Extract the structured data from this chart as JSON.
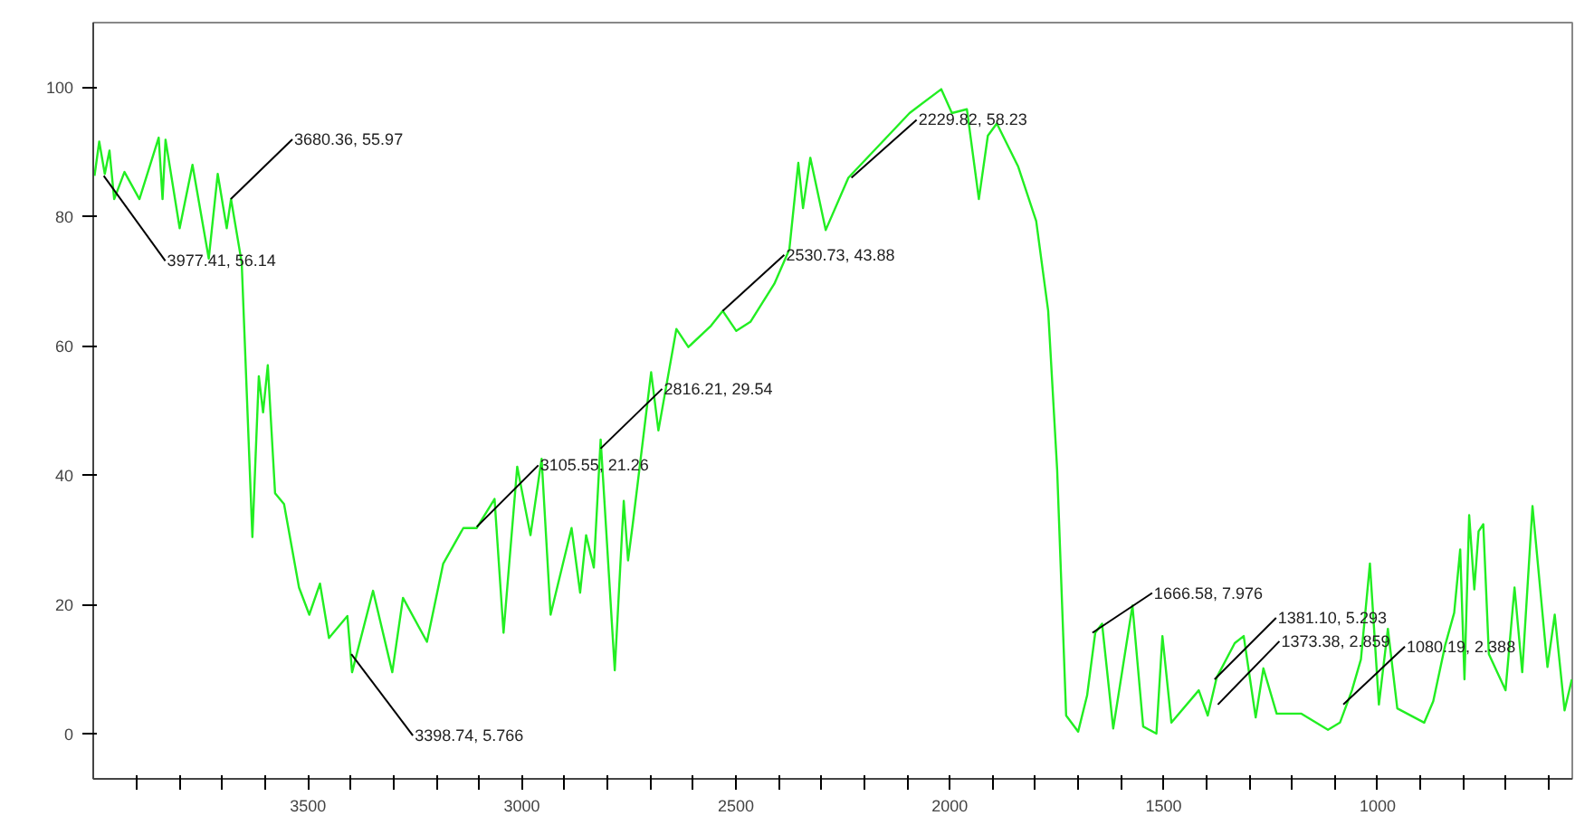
{
  "chart_data": {
    "type": "line",
    "xlim": [
      4002,
      545
    ],
    "ylim": [
      -7,
      110
    ],
    "xticks": [
      {
        "value": 3900,
        "label": null
      },
      {
        "value": 3800,
        "label": null
      },
      {
        "value": 3700,
        "label": null
      },
      {
        "value": 3600,
        "label": null
      },
      3500,
      {
        "value": 3400,
        "label": null
      },
      {
        "value": 3300,
        "label": null
      },
      {
        "value": 3200,
        "label": null
      },
      {
        "value": 3100,
        "label": null
      },
      3000,
      {
        "value": 2900,
        "label": null
      },
      {
        "value": 2800,
        "label": null
      },
      {
        "value": 2700,
        "label": null
      },
      {
        "value": 2600,
        "label": null
      },
      2500,
      {
        "value": 2400,
        "label": null
      },
      {
        "value": 2300,
        "label": null
      },
      {
        "value": 2200,
        "label": null
      },
      {
        "value": 2100,
        "label": null
      },
      2000,
      {
        "value": 1900,
        "label": null
      },
      {
        "value": 1800,
        "label": null
      },
      {
        "value": 1700,
        "label": null
      },
      {
        "value": 1600,
        "label": null
      },
      1500,
      {
        "value": 1400,
        "label": null
      },
      {
        "value": 1300,
        "label": null
      },
      {
        "value": 1200,
        "label": null
      },
      {
        "value": 1100,
        "label": null
      },
      1000,
      {
        "value": 900,
        "label": null
      },
      {
        "value": 800,
        "label": null
      },
      {
        "value": 700,
        "label": null
      },
      {
        "value": 600,
        "label": null
      }
    ],
    "yticks": [
      0,
      20,
      40,
      60,
      80,
      100
    ],
    "grid": false,
    "marker": "none",
    "line_style": "solid",
    "series": [
      {
        "color": "#22ee22",
        "x": [
          3999,
          3988,
          3975,
          3964,
          3953,
          3929,
          3894,
          3849,
          3840,
          3833,
          3800,
          3770,
          3732,
          3711,
          3690,
          3680,
          3655,
          3630,
          3615,
          3605,
          3594,
          3577,
          3556,
          3521,
          3497,
          3472,
          3451,
          3408,
          3397,
          3348,
          3303,
          3278,
          3222,
          3184,
          3137,
          3106,
          3064,
          3043,
          3011,
          2980,
          2954,
          2933,
          2884,
          2864,
          2850,
          2832,
          2816,
          2783,
          2762,
          2752,
          2741,
          2698,
          2681,
          2639,
          2611,
          2558,
          2530.73,
          2499,
          2466,
          2410,
          2375,
          2354,
          2343,
          2326,
          2290,
          2237,
          2094,
          2020,
          1995,
          1960,
          1932,
          1911,
          1890,
          1840,
          1798,
          1770,
          1749,
          1728,
          1700,
          1679,
          1660,
          1644,
          1618,
          1573,
          1548,
          1517,
          1503,
          1482,
          1418,
          1397,
          1376,
          1334,
          1313,
          1285,
          1267,
          1236,
          1179,
          1116,
          1088,
          1060,
          1039,
          1018,
          997,
          976,
          954,
          891,
          870,
          842,
          821,
          807,
          797,
          786,
          774,
          764,
          753,
          740,
          701,
          680,
          662,
          638,
          603,
          586,
          563,
          546
        ],
        "values": [
          86.3,
          91.6,
          86.6,
          90.2,
          82.7,
          86.9,
          82.7,
          92.2,
          82.7,
          91.9,
          78.2,
          88,
          73.5,
          86.6,
          78.2,
          82.7,
          72.9,
          30.4,
          55.3,
          49.7,
          57,
          37.2,
          35.5,
          22.6,
          18.4,
          23.2,
          14.8,
          18.2,
          9.5,
          22.1,
          9.5,
          21,
          14.2,
          26.3,
          31.8,
          31.8,
          36.3,
          15.6,
          41.3,
          30.7,
          42.5,
          18.4,
          31.8,
          21.8,
          30.7,
          25.7,
          45.5,
          9.8,
          36,
          26.8,
          32.4,
          55.9,
          46.9,
          62.6,
          59.8,
          63.1,
          65.4,
          62.3,
          63.7,
          69.6,
          74.9,
          88.3,
          81.3,
          89.1,
          77.9,
          86,
          96,
          99.7,
          96,
          96.6,
          82.7,
          92.5,
          94.4,
          87.7,
          79.3,
          65.4,
          40.8,
          2.8,
          0.3,
          5.9,
          15.6,
          17,
          0.8,
          19.8,
          1.1,
          0,
          15.1,
          1.7,
          6.7,
          2.8,
          8.7,
          14,
          15.1,
          2.5,
          10.1,
          3.1,
          3.1,
          0.6,
          1.7,
          6.7,
          11.5,
          26.3,
          4.5,
          16.2,
          3.9,
          1.7,
          5,
          13.7,
          18.7,
          28.5,
          8.4,
          33.8,
          22.3,
          31.3,
          32.4,
          12.3,
          6.7,
          22.6,
          9.5,
          35.2,
          10.3,
          18.4,
          3.6,
          8.4
        ]
      }
    ],
    "annotations": [
      {
        "text": "3977.41, 56.14",
        "x": 3977.41,
        "y": 86.3
      },
      {
        "text": "3680.36, 55.97",
        "x": 3680.36,
        "y": 82.7
      },
      {
        "text": "3398.74, 5.766",
        "x": 3398.74,
        "y": 12.3
      },
      {
        "text": "3105.55, 21.26",
        "x": 3105.55,
        "y": 32
      },
      {
        "text": "2816.21, 29.54",
        "x": 2816.21,
        "y": 44.1
      },
      {
        "text": "2530.73, 43.88",
        "x": 2530.73,
        "y": 65.4
      },
      {
        "text": "2229.82, 58.23",
        "x": 2229.82,
        "y": 86
      },
      {
        "text": "1666.58, 7.976",
        "x": 1666.58,
        "y": 15.6
      },
      {
        "text": "1381.10, 5.293",
        "x": 1381.1,
        "y": 8.4
      },
      {
        "text": "1373.38, 2.859",
        "x": 1373.38,
        "y": 4.5
      },
      {
        "text": "1080.19, 2.388",
        "x": 1080.19,
        "y": 4.5
      }
    ]
  }
}
